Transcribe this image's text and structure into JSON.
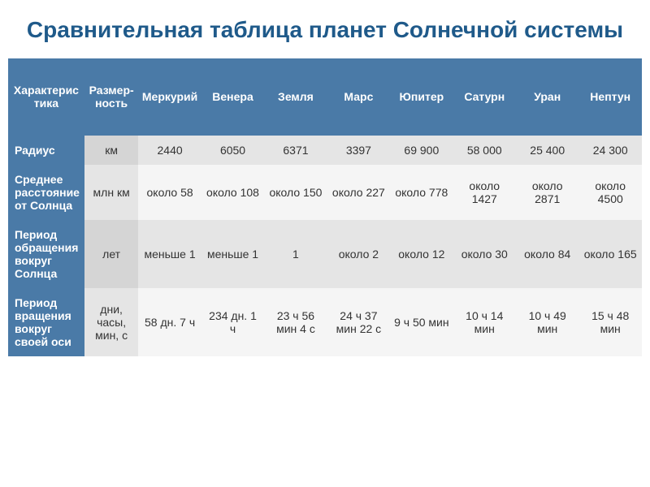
{
  "title": "Сравнительная таблица планет Солнечной системы",
  "colors": {
    "title_color": "#1f5a8a",
    "header_bg": "#4a7aa7",
    "header_text": "#ffffff",
    "row_odd_bg": "#e5e5e5",
    "row_even_bg": "#f5f5f5",
    "unit_odd_bg": "#d5d5d5",
    "unit_even_bg": "#e5e5e5",
    "text_color": "#333333"
  },
  "typography": {
    "title_fontsize": 28,
    "header_fontsize": 14,
    "cell_fontsize": 14
  },
  "table": {
    "columns": [
      "Характеристика",
      "Размер-ность",
      "Меркурий",
      "Венера",
      "Земля",
      "Марс",
      "Юпитер",
      "Сатурн",
      "Уран",
      "Нептун"
    ],
    "rows": [
      {
        "label": "Радиус",
        "unit": "км",
        "values": [
          "2440",
          "6050",
          "6371",
          "3397",
          "69 900",
          "58 000",
          "25 400",
          "24 300"
        ]
      },
      {
        "label": "Среднее расстояние от Солнца",
        "unit": "млн км",
        "values": [
          "около 58",
          "около 108",
          "около 150",
          "около 227",
          "около 778",
          "около 1427",
          "около 2871",
          "около 4500"
        ]
      },
      {
        "label": "Период обращения вокруг Солнца",
        "unit": "лет",
        "values": [
          "меньше 1",
          "меньше 1",
          "1",
          "около 2",
          "около 12",
          "около 30",
          "около 84",
          "около 165"
        ]
      },
      {
        "label": "Период вращения вокруг своей оси",
        "unit": "дни, часы, мин, с",
        "values": [
          "58 дн. 7 ч",
          "234 дн. 1 ч",
          "23 ч 56 мин 4 с",
          "24 ч 37 мин 22 с",
          "9 ч 50 мин",
          "10 ч 14 мин",
          "10 ч 49 мин",
          "15 ч 48 мин"
        ]
      }
    ]
  }
}
